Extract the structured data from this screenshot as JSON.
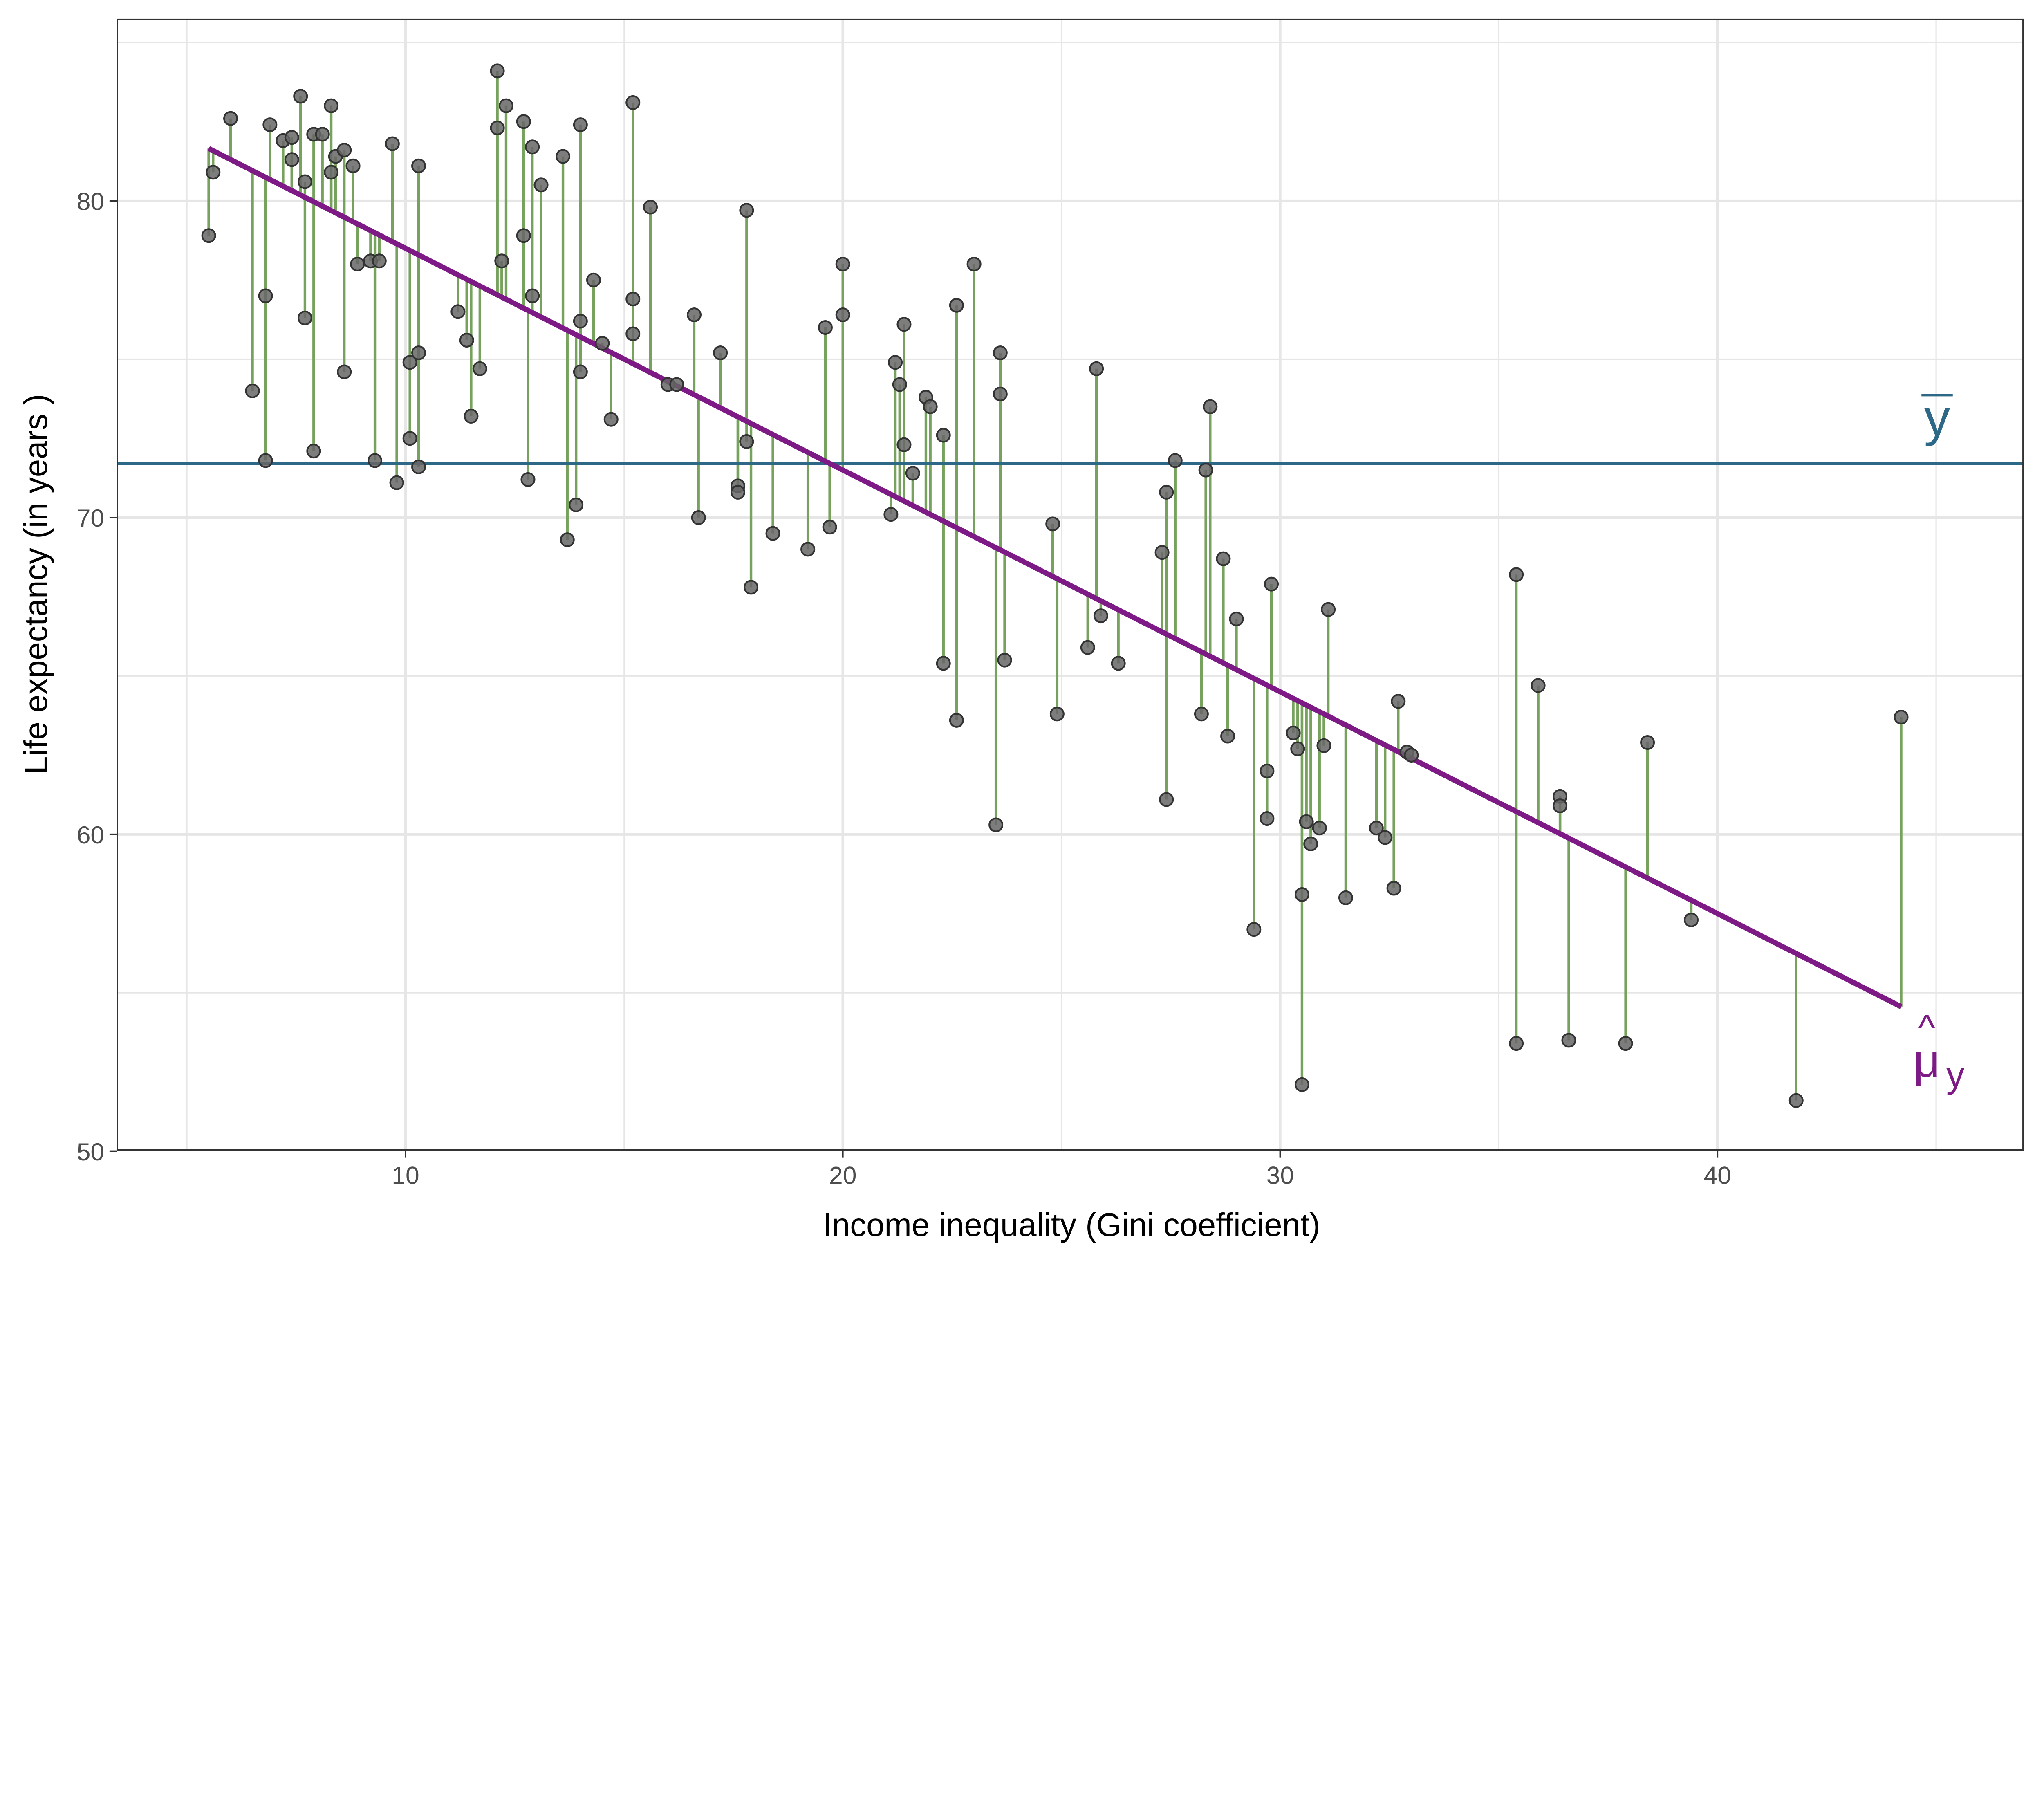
{
  "chart_data": {
    "type": "scatter",
    "title": "",
    "xlabel": "Income inequality (Gini coefficient)",
    "ylabel": "Life expectancy (in years )",
    "xlim": [
      3.41,
      46.99
    ],
    "ylim": [
      50.04,
      85.72
    ],
    "xticks": [
      10,
      20,
      30,
      40
    ],
    "yticks": [
      50,
      60,
      70,
      80
    ],
    "grid": true,
    "mean_y": 71.7,
    "mean_label": "y",
    "fit_label_main": "μ",
    "fit_label_sub": "y",
    "regression": {
      "intercept": 85.5,
      "slope": -0.7,
      "x_range": [
        5.5,
        44.2
      ]
    },
    "colors": {
      "points": "#666666",
      "residuals": "#77a25d",
      "fit": "#7e1a85",
      "mean": "#2e6887",
      "grid": "#e6e6e6"
    },
    "points": [
      [
        5.5,
        78.9
      ],
      [
        5.6,
        80.9
      ],
      [
        6.0,
        82.6
      ],
      [
        6.5,
        74.0
      ],
      [
        6.8,
        77.0
      ],
      [
        6.8,
        71.8
      ],
      [
        6.9,
        82.4
      ],
      [
        7.2,
        81.9
      ],
      [
        7.4,
        82.0
      ],
      [
        7.4,
        81.3
      ],
      [
        7.6,
        83.3
      ],
      [
        7.7,
        80.6
      ],
      [
        7.7,
        76.3
      ],
      [
        7.9,
        82.1
      ],
      [
        7.9,
        72.1
      ],
      [
        8.1,
        82.1
      ],
      [
        8.3,
        83.0
      ],
      [
        8.3,
        80.9
      ],
      [
        8.4,
        81.4
      ],
      [
        8.6,
        81.6
      ],
      [
        8.6,
        74.6
      ],
      [
        8.8,
        81.1
      ],
      [
        8.9,
        78.0
      ],
      [
        9.2,
        78.1
      ],
      [
        9.3,
        71.8
      ],
      [
        9.4,
        78.1
      ],
      [
        9.7,
        81.8
      ],
      [
        9.8,
        71.1
      ],
      [
        10.1,
        74.9
      ],
      [
        10.1,
        72.5
      ],
      [
        10.3,
        81.1
      ],
      [
        10.3,
        75.2
      ],
      [
        10.3,
        71.6
      ],
      [
        11.2,
        76.5
      ],
      [
        11.4,
        75.6
      ],
      [
        11.5,
        73.2
      ],
      [
        11.7,
        74.7
      ],
      [
        12.1,
        84.1
      ],
      [
        12.1,
        82.3
      ],
      [
        12.2,
        78.1
      ],
      [
        12.3,
        83.0
      ],
      [
        12.7,
        82.5
      ],
      [
        12.7,
        78.9
      ],
      [
        12.8,
        71.2
      ],
      [
        12.9,
        81.7
      ],
      [
        12.9,
        77.0
      ],
      [
        13.1,
        80.5
      ],
      [
        13.6,
        81.4
      ],
      [
        13.7,
        69.3
      ],
      [
        13.9,
        70.4
      ],
      [
        14.0,
        82.4
      ],
      [
        14.0,
        76.2
      ],
      [
        14.0,
        74.6
      ],
      [
        14.3,
        77.5
      ],
      [
        14.5,
        75.5
      ],
      [
        14.7,
        73.1
      ],
      [
        15.2,
        83.1
      ],
      [
        15.2,
        76.9
      ],
      [
        15.2,
        75.8
      ],
      [
        15.6,
        79.8
      ],
      [
        16.0,
        74.2
      ],
      [
        16.2,
        74.2
      ],
      [
        16.6,
        76.4
      ],
      [
        16.7,
        70.0
      ],
      [
        17.2,
        75.2
      ],
      [
        17.6,
        71.0
      ],
      [
        17.6,
        70.8
      ],
      [
        17.8,
        79.7
      ],
      [
        17.8,
        72.4
      ],
      [
        17.9,
        67.8
      ],
      [
        18.4,
        69.5
      ],
      [
        19.2,
        69.0
      ],
      [
        19.6,
        76.0
      ],
      [
        19.7,
        69.7
      ],
      [
        20.0,
        78.0
      ],
      [
        20.0,
        76.4
      ],
      [
        21.1,
        70.1
      ],
      [
        21.2,
        74.9
      ],
      [
        21.3,
        74.2
      ],
      [
        21.4,
        72.3
      ],
      [
        21.4,
        76.1
      ],
      [
        21.6,
        71.4
      ],
      [
        21.9,
        73.8
      ],
      [
        22.0,
        73.5
      ],
      [
        22.3,
        72.6
      ],
      [
        22.3,
        65.4
      ],
      [
        22.6,
        76.7
      ],
      [
        22.6,
        63.6
      ],
      [
        23.0,
        78.0
      ],
      [
        23.5,
        60.3
      ],
      [
        23.6,
        75.2
      ],
      [
        23.6,
        73.9
      ],
      [
        23.7,
        65.5
      ],
      [
        24.8,
        69.8
      ],
      [
        24.9,
        63.8
      ],
      [
        25.6,
        65.9
      ],
      [
        25.8,
        74.7
      ],
      [
        25.9,
        66.9
      ],
      [
        26.3,
        65.4
      ],
      [
        27.3,
        68.9
      ],
      [
        27.4,
        70.8
      ],
      [
        27.4,
        61.1
      ],
      [
        27.6,
        71.8
      ],
      [
        28.2,
        63.8
      ],
      [
        28.3,
        71.5
      ],
      [
        28.4,
        73.5
      ],
      [
        28.7,
        68.7
      ],
      [
        28.8,
        63.1
      ],
      [
        29.0,
        66.8
      ],
      [
        29.4,
        57.0
      ],
      [
        29.7,
        62.0
      ],
      [
        29.7,
        60.5
      ],
      [
        29.8,
        67.9
      ],
      [
        30.3,
        63.2
      ],
      [
        30.4,
        62.7
      ],
      [
        30.5,
        58.1
      ],
      [
        30.5,
        52.1
      ],
      [
        30.6,
        60.4
      ],
      [
        30.7,
        59.7
      ],
      [
        30.9,
        60.2
      ],
      [
        31.0,
        62.8
      ],
      [
        31.1,
        67.1
      ],
      [
        31.5,
        58.0
      ],
      [
        32.2,
        60.2
      ],
      [
        32.4,
        59.9
      ],
      [
        32.6,
        58.3
      ],
      [
        32.7,
        64.2
      ],
      [
        32.9,
        62.6
      ],
      [
        33.0,
        62.5
      ],
      [
        35.4,
        68.2
      ],
      [
        35.4,
        53.4
      ],
      [
        35.9,
        64.7
      ],
      [
        36.4,
        61.2
      ],
      [
        36.4,
        60.9
      ],
      [
        36.6,
        53.5
      ],
      [
        37.9,
        53.4
      ],
      [
        38.4,
        62.9
      ],
      [
        39.4,
        57.3
      ],
      [
        41.8,
        51.6
      ],
      [
        44.2,
        63.7
      ]
    ]
  }
}
